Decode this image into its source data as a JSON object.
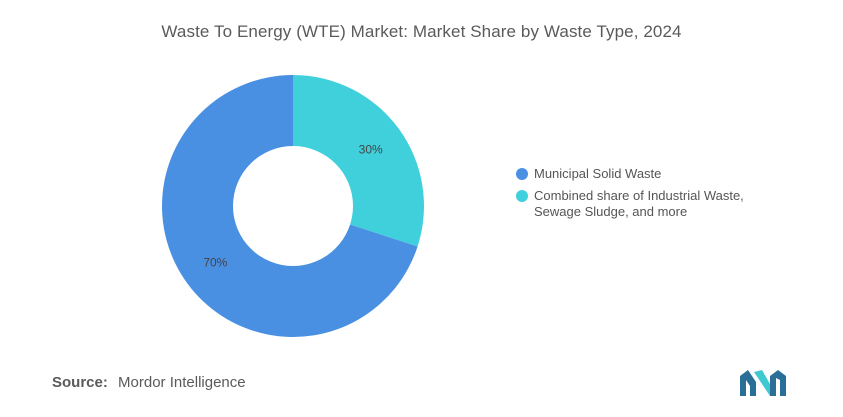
{
  "title": "Waste To Energy (WTE) Market: Market Share by Waste Type, 2024",
  "chart_data": {
    "type": "pie",
    "variant": "donut",
    "title": "Waste To Energy (WTE) Market: Market Share by Waste Type, 2024",
    "categories": [
      "Municipal Solid Waste",
      "Combined share of Industrial Waste, Sewage Sludge, and more"
    ],
    "values": [
      70,
      30
    ],
    "data_labels": [
      "70%",
      "30%"
    ],
    "colors": [
      "#4a90e2",
      "#40d0db"
    ],
    "legend_placement": "right"
  },
  "legend": {
    "items": [
      {
        "label": "Municipal Solid Waste",
        "color": "#4a90e2"
      },
      {
        "label": "Combined share of Industrial Waste, Sewage Sludge, and more",
        "color": "#40d0db"
      }
    ]
  },
  "source": {
    "label": "Source:",
    "text": "Mordor Intelligence"
  },
  "logo": {
    "icon": "mordor-intelligence-logo",
    "colors": [
      "#2a6f97",
      "#40c8d0"
    ]
  }
}
